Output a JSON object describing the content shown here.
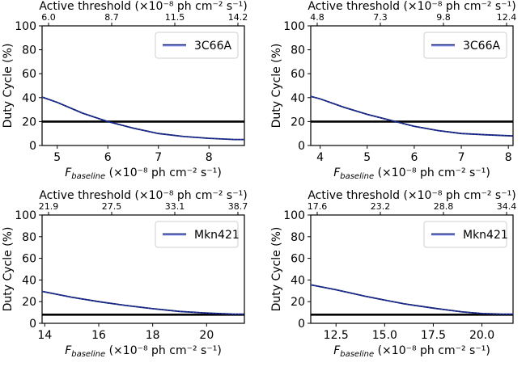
{
  "chart_data": [
    {
      "type": "line",
      "title": "",
      "top_axis_label": "Active threshold (×10⁻⁸ ph cm⁻² s⁻¹)",
      "top_ticks": [
        "6.0",
        "8.7",
        "11.5",
        "14.2"
      ],
      "xlabel_main": "F",
      "xlabel_sub": "baseline",
      "xlabel_rest": " (×10⁻⁸ ph cm⁻² s⁻¹)",
      "ylabel": "Duty Cycle (%)",
      "xlim": [
        4.7,
        8.7
      ],
      "ylim": [
        0,
        100
      ],
      "xticks": [
        5,
        6,
        7,
        8
      ],
      "xtick_labels": [
        "5",
        "6",
        "7",
        "8"
      ],
      "yticks": [
        0,
        20,
        40,
        60,
        80,
        100
      ],
      "ytick_labels": [
        "0",
        "20",
        "40",
        "60",
        "80",
        "100"
      ],
      "legend": "3C66A",
      "legend_position": "top-right",
      "threshold_line": 20,
      "series": [
        {
          "name": "3C66A",
          "x": [
            4.7,
            5.0,
            5.5,
            6.0,
            6.5,
            7.0,
            7.5,
            8.0,
            8.5,
            8.7
          ],
          "values": [
            40.5,
            36,
            27,
            20,
            14.5,
            10,
            7.5,
            6,
            5,
            5
          ]
        }
      ]
    },
    {
      "type": "line",
      "title": "",
      "top_axis_label": "Active threshold (×10⁻⁸ ph cm⁻² s⁻¹)",
      "top_ticks": [
        "4.8",
        "7.3",
        "9.8",
        "12.4"
      ],
      "xlabel_main": "F",
      "xlabel_sub": "baseline",
      "xlabel_rest": " (×10⁻⁸ ph cm⁻² s⁻¹)",
      "ylabel": "Duty Cycle (%)",
      "xlim": [
        3.8,
        8.1
      ],
      "ylim": [
        0,
        100
      ],
      "xticks": [
        4,
        5,
        6,
        7,
        8
      ],
      "xtick_labels": [
        "4",
        "5",
        "6",
        "7",
        "8"
      ],
      "yticks": [
        0,
        20,
        40,
        60,
        80,
        100
      ],
      "ytick_labels": [
        "0",
        "20",
        "40",
        "60",
        "80",
        "100"
      ],
      "legend": "3C66A",
      "legend_position": "top-right",
      "threshold_line": 20,
      "series": [
        {
          "name": "3C66A",
          "x": [
            3.8,
            4.0,
            4.5,
            5.0,
            5.5,
            6.0,
            6.5,
            7.0,
            7.5,
            8.1
          ],
          "values": [
            41,
            39,
            32,
            26,
            21,
            16,
            12.5,
            10,
            9,
            8
          ]
        }
      ]
    },
    {
      "type": "line",
      "title": "",
      "top_axis_label": "Active threshold (×10⁻⁸ ph cm⁻² s⁻¹)",
      "top_ticks": [
        "21.9",
        "27.5",
        "33.1",
        "38.7"
      ],
      "xlabel_main": "F",
      "xlabel_sub": "baseline",
      "xlabel_rest": " (×10⁻⁸ ph cm⁻² s⁻¹)",
      "ylabel": "Duty Cycle (%)",
      "xlim": [
        13.9,
        21.4
      ],
      "ylim": [
        0,
        100
      ],
      "xticks": [
        14,
        16,
        18,
        20
      ],
      "xtick_labels": [
        "14",
        "16",
        "18",
        "20"
      ],
      "yticks": [
        0,
        20,
        40,
        60,
        80,
        100
      ],
      "ytick_labels": [
        "0",
        "20",
        "40",
        "60",
        "80",
        "100"
      ],
      "legend": "Mkn421",
      "legend_position": "top-right",
      "threshold_line": 8,
      "series": [
        {
          "name": "Mkn421",
          "x": [
            13.9,
            15,
            16,
            17,
            18,
            19,
            20,
            21,
            21.4
          ],
          "values": [
            29.5,
            24,
            20,
            16.5,
            13.5,
            11,
            9.5,
            8.5,
            8.5
          ]
        }
      ]
    },
    {
      "type": "line",
      "title": "",
      "top_axis_label": "Active threshold (×10⁻⁸ ph cm⁻² s⁻¹)",
      "top_ticks": [
        "17.6",
        "23.2",
        "28.8",
        "34.4"
      ],
      "xlabel_main": "F",
      "xlabel_sub": "baseline",
      "xlabel_rest": " (×10⁻⁸ ph cm⁻² s⁻¹)",
      "ylabel": "Duty Cycle (%)",
      "xlim": [
        11.2,
        21.6
      ],
      "ylim": [
        0,
        100
      ],
      "xticks": [
        12.5,
        15.0,
        17.5,
        20.0
      ],
      "xtick_labels": [
        "12.5",
        "15.0",
        "17.5",
        "20.0"
      ],
      "yticks": [
        0,
        20,
        40,
        60,
        80,
        100
      ],
      "ytick_labels": [
        "0",
        "20",
        "40",
        "60",
        "80",
        "100"
      ],
      "legend": "Mkn421",
      "legend_position": "top-right",
      "threshold_line": 8,
      "series": [
        {
          "name": "Mkn421",
          "x": [
            11.2,
            12.5,
            14,
            15,
            16,
            17.5,
            19,
            20,
            21,
            21.6
          ],
          "values": [
            35.5,
            31,
            25,
            21.5,
            18,
            14,
            10.5,
            9,
            8.5,
            8.5
          ]
        }
      ]
    }
  ],
  "colors": {
    "curve_outer": "#0b1a6b",
    "curve_inner": "#3b4bd6",
    "threshold": "#000000",
    "legend_line_top": "#0b1a6b",
    "legend_line_bottom": "#3b4bd6"
  }
}
